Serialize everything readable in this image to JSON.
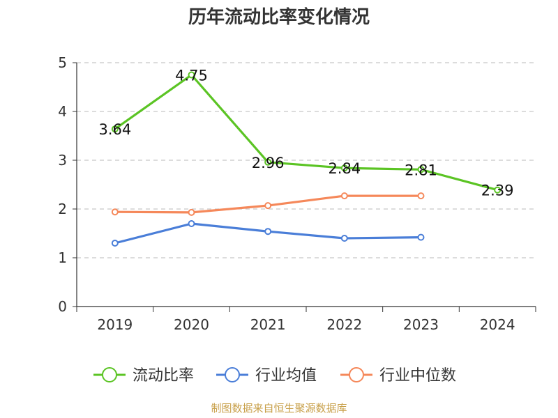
{
  "chart_data": {
    "type": "line",
    "title": "历年流动比率变化情况",
    "categories": [
      "2019",
      "2020",
      "2021",
      "2022",
      "2023",
      "2024"
    ],
    "ylim": [
      0,
      5
    ],
    "yticks": [
      0,
      1,
      2,
      3,
      4,
      5
    ],
    "grid": true,
    "legend_position": "bottom",
    "series": [
      {
        "name": "流动比率",
        "color": "#5bc424",
        "values": [
          3.64,
          4.75,
          2.96,
          2.84,
          2.81,
          2.39
        ],
        "labels": [
          "3.64",
          "4.75",
          "2.96",
          "2.84",
          "2.81",
          "2.39"
        ]
      },
      {
        "name": "行业均值",
        "color": "#4a7ed8",
        "values": [
          1.3,
          1.7,
          1.54,
          1.4,
          1.42,
          null
        ]
      },
      {
        "name": "行业中位数",
        "color": "#f5885a",
        "values": [
          1.94,
          1.93,
          2.07,
          2.27,
          2.27,
          null
        ]
      }
    ]
  },
  "source": "制图数据来自恒生聚源数据库"
}
